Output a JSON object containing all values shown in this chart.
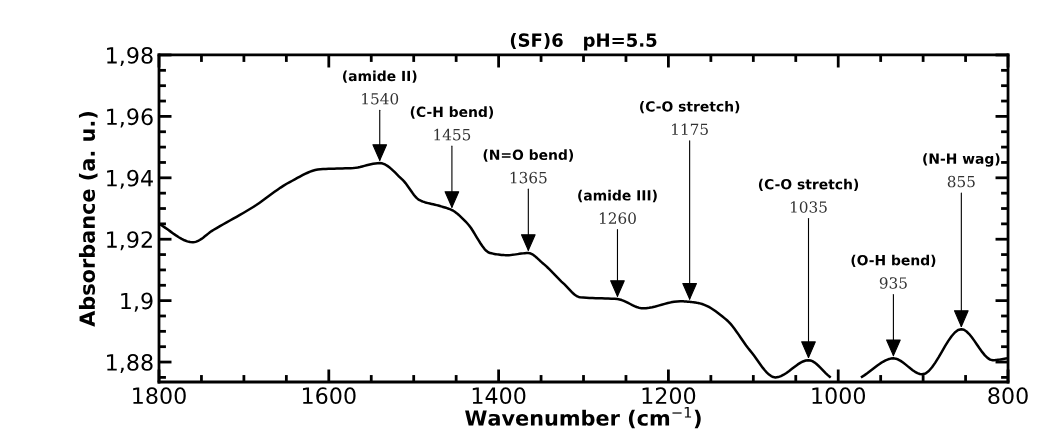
{
  "chart_data": {
    "type": "line",
    "title": "(SF)6   pH=5.5",
    "xlabel": "Wavenumber (cm$^{−1}$)",
    "ylabel": "Absorbance (a. u.)",
    "x": [
      1800,
      1760,
      1736,
      1689,
      1646,
      1610,
      1571,
      1540,
      1513,
      1493,
      1469,
      1455,
      1437,
      1410,
      1390,
      1365,
      1348,
      1324,
      1304,
      1260,
      1230,
      1186,
      1175,
      1163,
      1131,
      1104,
      1074,
      1035,
      1010,
      990,
      972,
      935,
      901,
      855,
      818,
      801
    ],
    "series": [
      {
        "color": "#000000",
        "values": [
          1.925,
          1.919,
          1.923,
          1.9305,
          1.9386,
          1.9428,
          1.9432,
          1.9448,
          1.9393,
          1.9327,
          1.9308,
          1.9295,
          1.9252,
          1.9155,
          1.9148,
          1.9155,
          1.9122,
          1.9057,
          1.9011,
          1.9005,
          1.8975,
          1.8998,
          1.8996,
          1.8991,
          1.8936,
          1.8838,
          1.875,
          1.8806,
          1.8752,
          null,
          1.8752,
          1.8812,
          1.876,
          1.8907,
          1.8806,
          1.8812
        ]
      }
    ],
    "xlim": [
      1800,
      800
    ],
    "xticks": [
      1800,
      1600,
      1400,
      1200,
      1000,
      800
    ],
    "ylim": [
      1.8735,
      1.98
    ],
    "yticks": [
      {
        "value": 1.88,
        "label": "1,88"
      },
      {
        "value": 1.9,
        "label": "1,9"
      },
      {
        "value": 1.92,
        "label": "1,92"
      },
      {
        "value": 1.94,
        "label": "1,94"
      },
      {
        "value": 1.96,
        "label": "1,96"
      },
      {
        "value": 1.98,
        "label": "1,98"
      }
    ],
    "grid": false,
    "legend": false,
    "marker": "none",
    "line_style": "solid",
    "annotations": [
      {
        "text": "(amide II)\n1540",
        "x": 1540,
        "y": 1.9448
      },
      {
        "text": "(C-H bend)\n1455",
        "x": 1455,
        "y": 1.9295
      },
      {
        "text": "(N=O bend)\n1365",
        "x": 1365,
        "y": 1.9155
      },
      {
        "text": "(amide III)\n1260",
        "x": 1260,
        "y": 1.9005
      },
      {
        "text": "(C-O stretch)\n1175",
        "x": 1175,
        "y": 1.8996
      },
      {
        "text": "(C-O stretch)\n1035",
        "x": 1035,
        "y": 1.8806
      },
      {
        "text": "(O-H bend)\n935",
        "x": 935,
        "y": 1.8812
      },
      {
        "text": "(N-H wag)\n855",
        "x": 855,
        "y": 1.8907
      }
    ]
  }
}
